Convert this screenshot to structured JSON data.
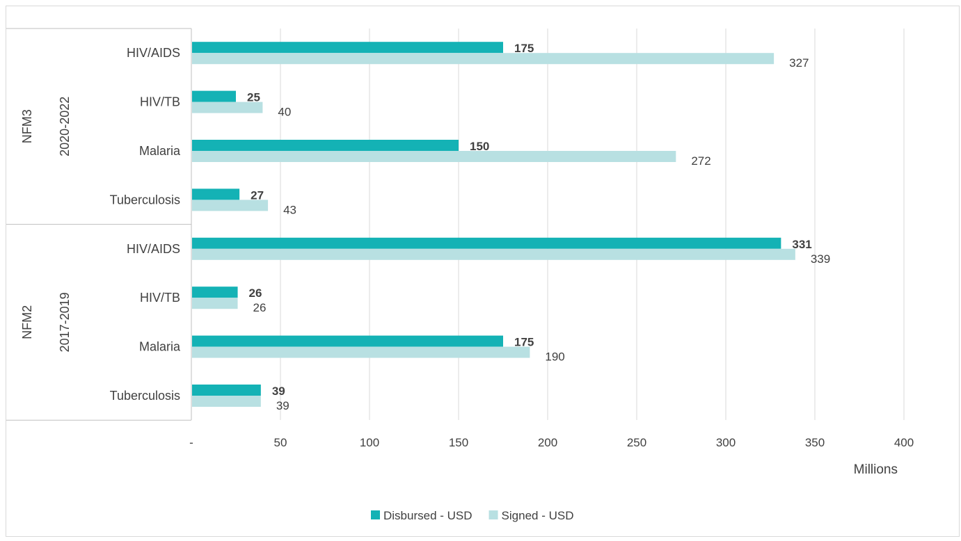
{
  "chart_data": {
    "type": "bar",
    "orientation": "horizontal",
    "groups": [
      {
        "name": "NFM3",
        "period": "2020-2022",
        "categories": [
          "HIV/AIDS",
          "HIV/TB",
          "Malaria",
          "Tuberculosis"
        ],
        "disbursed": [
          175,
          25,
          150,
          27
        ],
        "signed": [
          327,
          40,
          272,
          43
        ]
      },
      {
        "name": "NFM2",
        "period": "2017-2019",
        "categories": [
          "HIV/AIDS",
          "HIV/TB",
          "Malaria",
          "Tuberculosis"
        ],
        "disbursed": [
          331,
          26,
          175,
          39
        ],
        "signed": [
          339,
          26,
          190,
          39
        ]
      }
    ],
    "series": [
      {
        "name": "Disbursed - USD",
        "key": "disbursed",
        "color": "#14b2b5"
      },
      {
        "name": "Signed - USD",
        "key": "signed",
        "color": "#b8e0e2"
      }
    ],
    "x_ticks": [
      "-",
      "50",
      "100",
      "150",
      "200",
      "250",
      "300",
      "350",
      "400"
    ],
    "x_tick_values": [
      0,
      50,
      100,
      150,
      200,
      250,
      300,
      350,
      400
    ],
    "xlim": [
      0,
      400
    ],
    "unit_label": "Millions",
    "grid": true,
    "legend_position": "bottom"
  }
}
